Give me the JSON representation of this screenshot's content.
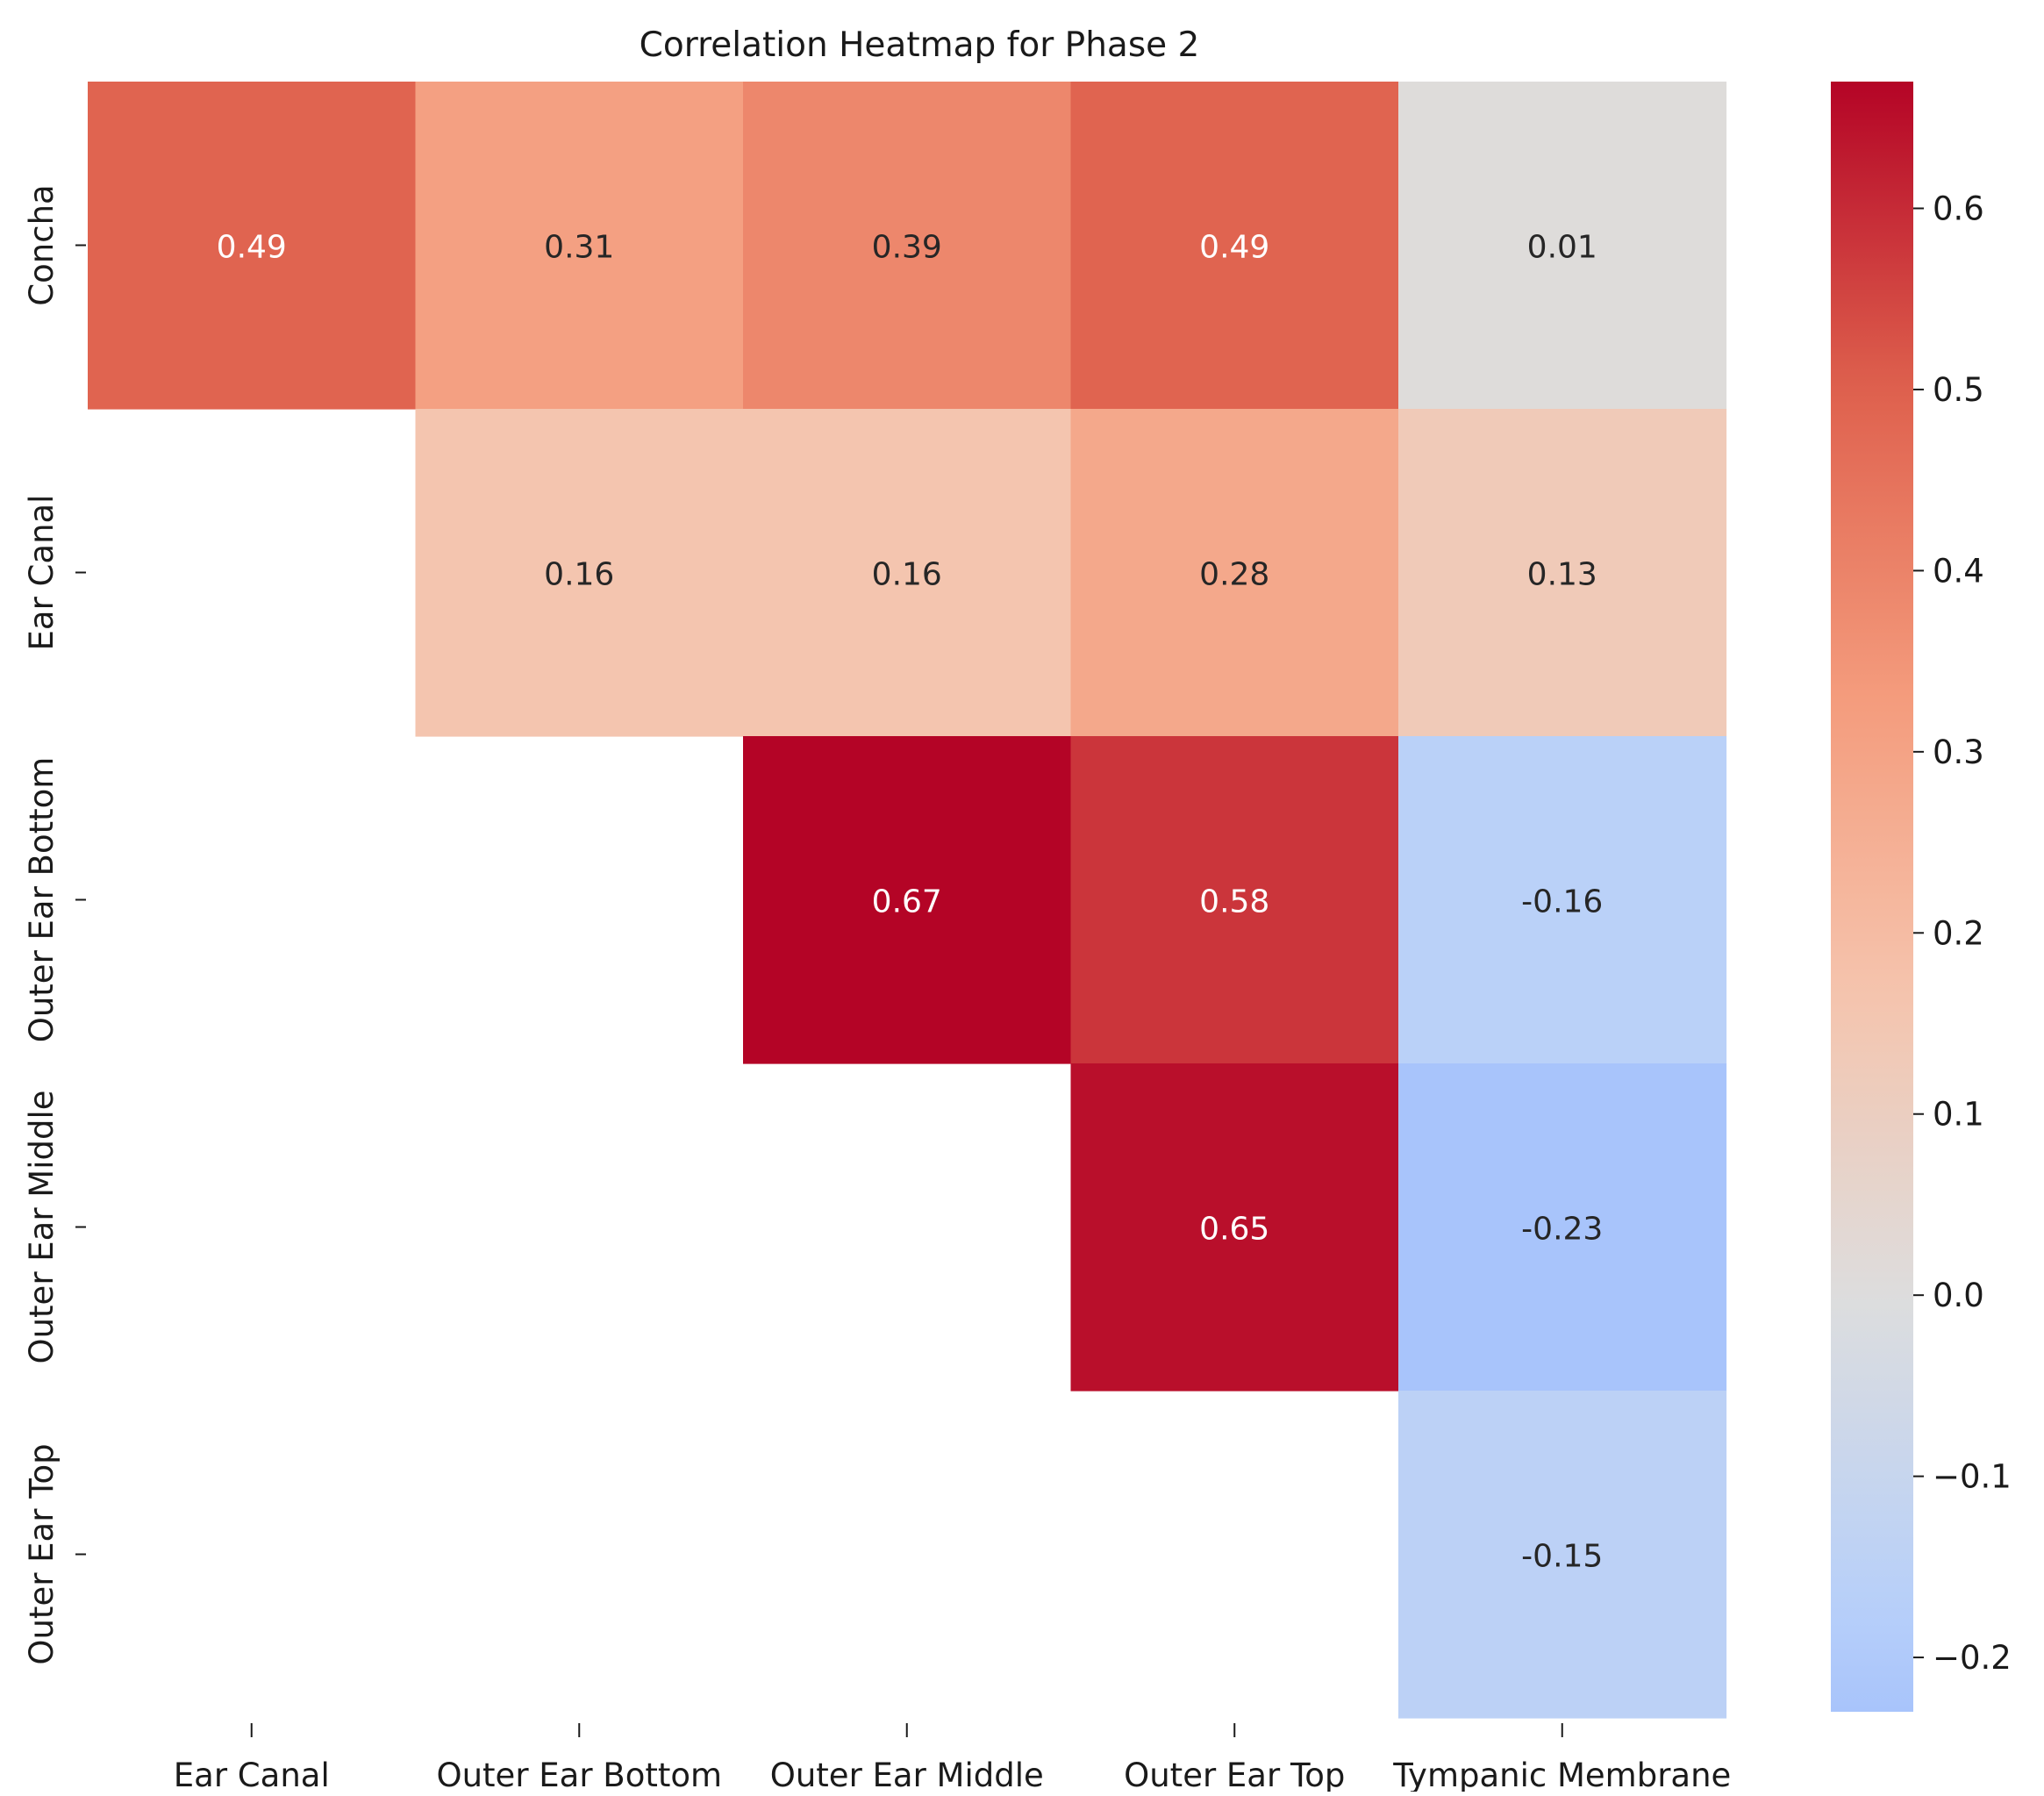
{
  "chart_data": {
    "type": "heatmap",
    "title": "Correlation Heatmap for Phase 2",
    "xlabel": "",
    "ylabel": "",
    "x_categories": [
      "Ear Canal",
      "Outer Ear Bottom",
      "Outer Ear Middle",
      "Outer Ear Top",
      "Tympanic Membrane"
    ],
    "y_categories": [
      "Concha",
      "Ear Canal",
      "Outer Ear Bottom",
      "Outer Ear Middle",
      "Outer Ear Top"
    ],
    "values": [
      [
        0.49,
        0.31,
        0.39,
        0.49,
        0.01
      ],
      [
        null,
        0.16,
        0.16,
        0.28,
        0.13
      ],
      [
        null,
        null,
        0.67,
        0.58,
        -0.16
      ],
      [
        null,
        null,
        null,
        0.65,
        -0.23
      ],
      [
        null,
        null,
        null,
        null,
        -0.15
      ]
    ],
    "value_format": "2-decimal",
    "masked": "lower-triangle",
    "colormap": "coolwarm",
    "colorbar": {
      "range": [
        -0.23,
        0.67
      ],
      "ticks": [
        -0.2,
        -0.1,
        0.0,
        0.1,
        0.2,
        0.3,
        0.4,
        0.5,
        0.6
      ],
      "tick_labels": [
        "−0.2",
        "−0.1",
        "0.0",
        "0.1",
        "0.2",
        "0.3",
        "0.4",
        "0.5",
        "0.6"
      ],
      "placement": "right"
    },
    "grid": false
  }
}
